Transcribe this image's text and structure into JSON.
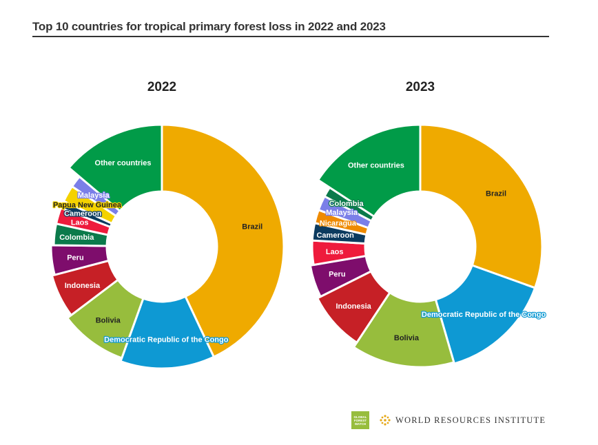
{
  "header": {
    "title": "Top 10 countries for tropical primary forest loss in 2022 and 2023"
  },
  "footer": {
    "gfw_logo_lines": [
      "GLOBAL",
      "FOREST",
      "WATCH"
    ],
    "wri_text": "WORLD RESOURCES INSTITUTE"
  },
  "chart_data": [
    {
      "type": "pie",
      "title": "2022",
      "donut": true,
      "categories": [
        "Brazil",
        "Democratic Republic of the Congo",
        "Bolivia",
        "Indonesia",
        "Peru",
        "Colombia",
        "Laos",
        "Cameroon",
        "Papua New Guinea",
        "Malaysia",
        "Other countries"
      ],
      "values": [
        43.0,
        12.5,
        9.2,
        6.2,
        4.3,
        3.2,
        2.4,
        1.1,
        2.5,
        1.8,
        13.8
      ],
      "colors": [
        "#efaa00",
        "#0e99d3",
        "#97bd3d",
        "#c62026",
        "#7e0d6c",
        "#0b7a4b",
        "#ee1b3c",
        "#0c3b5f",
        "#f4d200",
        "#7b7fe8",
        "#019b48"
      ]
    },
    {
      "type": "pie",
      "title": "2023",
      "donut": true,
      "categories": [
        "Brazil",
        "Democratic Republic of the Congo",
        "Bolivia",
        "Indonesia",
        "Peru",
        "Laos",
        "Cameroon",
        "Nicaragua",
        "Malaysia",
        "Colombia",
        "Other countries"
      ],
      "values": [
        30.5,
        15.0,
        13.8,
        8.3,
        4.7,
        3.6,
        2.6,
        2.0,
        2.2,
        1.5,
        15.8
      ],
      "colors": [
        "#efaa00",
        "#0e99d3",
        "#97bd3d",
        "#c62026",
        "#7e0d6c",
        "#ee1b3c",
        "#0c3b5f",
        "#ee8a00",
        "#7b7fe8",
        "#0b7a4b",
        "#019b48"
      ]
    }
  ]
}
